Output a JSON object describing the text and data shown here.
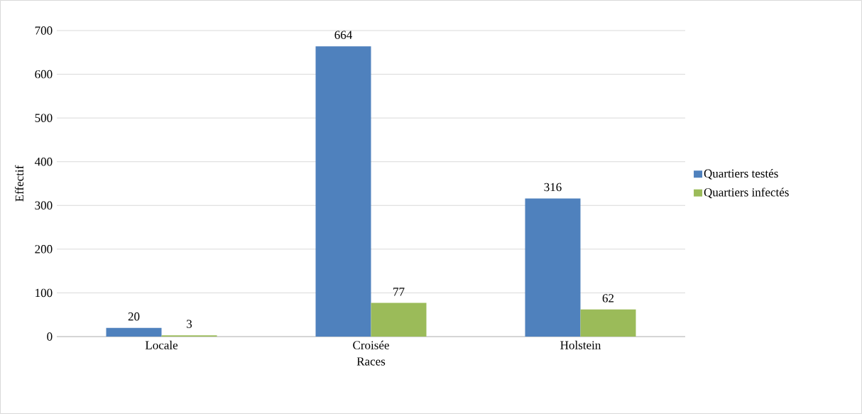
{
  "chart_data": {
    "type": "bar",
    "xlabel": "Races",
    "ylabel": "Effectif",
    "categories": [
      "Locale",
      "Croisée",
      "Holstein"
    ],
    "series": [
      {
        "name": "Quartiers testés",
        "color": "#4f81bd",
        "values": [
          20,
          664,
          316
        ]
      },
      {
        "name": "Quartiers infectés",
        "color": "#9bbb59",
        "values": [
          3,
          77,
          62
        ]
      }
    ],
    "ylim": [
      0,
      700
    ],
    "yticks": [
      0,
      100,
      200,
      300,
      400,
      500,
      600,
      700
    ],
    "grid": "y",
    "legend": "right",
    "data_labels": true
  }
}
